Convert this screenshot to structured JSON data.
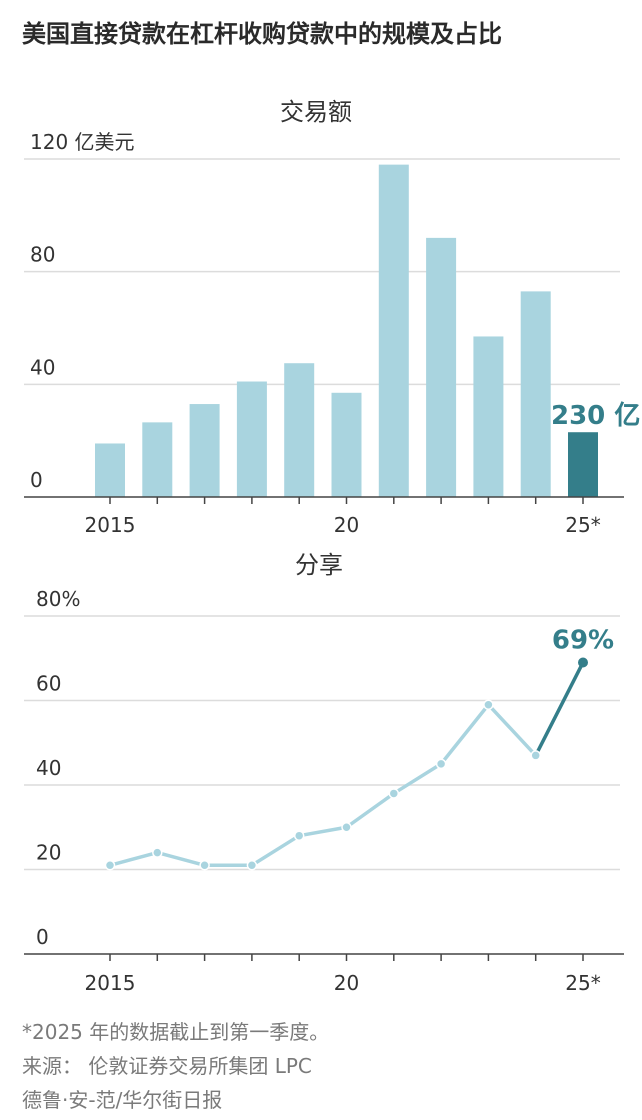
{
  "title": "美国直接贷款在杠杆收购贷款中的规模及占比",
  "footnotes": {
    "note": "*2025 年的数据截止到第一季度。",
    "source": "来源： 伦敦证券交易所集团 LPC",
    "credit": "德鲁·安-范/华尔街日报"
  },
  "colors": {
    "bar": "#a9d4df",
    "highlight": "#347e8a",
    "line": "#a9d4df",
    "axis": "#444444",
    "grid": "#dcdcdc"
  },
  "chart_data": [
    {
      "type": "bar",
      "title": "交易额",
      "unit_label": "120 亿美元",
      "x": [
        2015,
        2016,
        2017,
        2018,
        2019,
        2020,
        2021,
        2022,
        2023,
        2024,
        2025
      ],
      "values": [
        19,
        26.5,
        33,
        41,
        47.5,
        37,
        118,
        92,
        57,
        73,
        23
      ],
      "highlight_index": 10,
      "highlight_label": "230 亿",
      "yticks": [
        0,
        40,
        80,
        120
      ],
      "ytick_labels": [
        "0",
        "40",
        "80",
        "120 亿美元"
      ],
      "ylim": [
        0,
        120
      ],
      "xtick_labels": [
        {
          "x": 2015,
          "label": "2015"
        },
        {
          "x": 2020,
          "label": "20"
        },
        {
          "x": 2025,
          "label": "25*"
        }
      ]
    },
    {
      "type": "line",
      "title": "分享",
      "x": [
        2015,
        2016,
        2017,
        2018,
        2019,
        2020,
        2021,
        2022,
        2023,
        2024,
        2025
      ],
      "values": [
        21,
        24,
        21,
        21,
        28,
        30,
        38,
        45,
        59,
        47,
        69
      ],
      "highlight_index": 10,
      "highlight_label": "69%",
      "yticks": [
        0,
        20,
        40,
        60,
        80
      ],
      "ytick_labels": [
        "0",
        "20",
        "40",
        "60",
        "80%"
      ],
      "ylim": [
        0,
        80
      ],
      "xtick_labels": [
        {
          "x": 2015,
          "label": "2015"
        },
        {
          "x": 2020,
          "label": "20"
        },
        {
          "x": 2025,
          "label": "25*"
        }
      ]
    }
  ]
}
